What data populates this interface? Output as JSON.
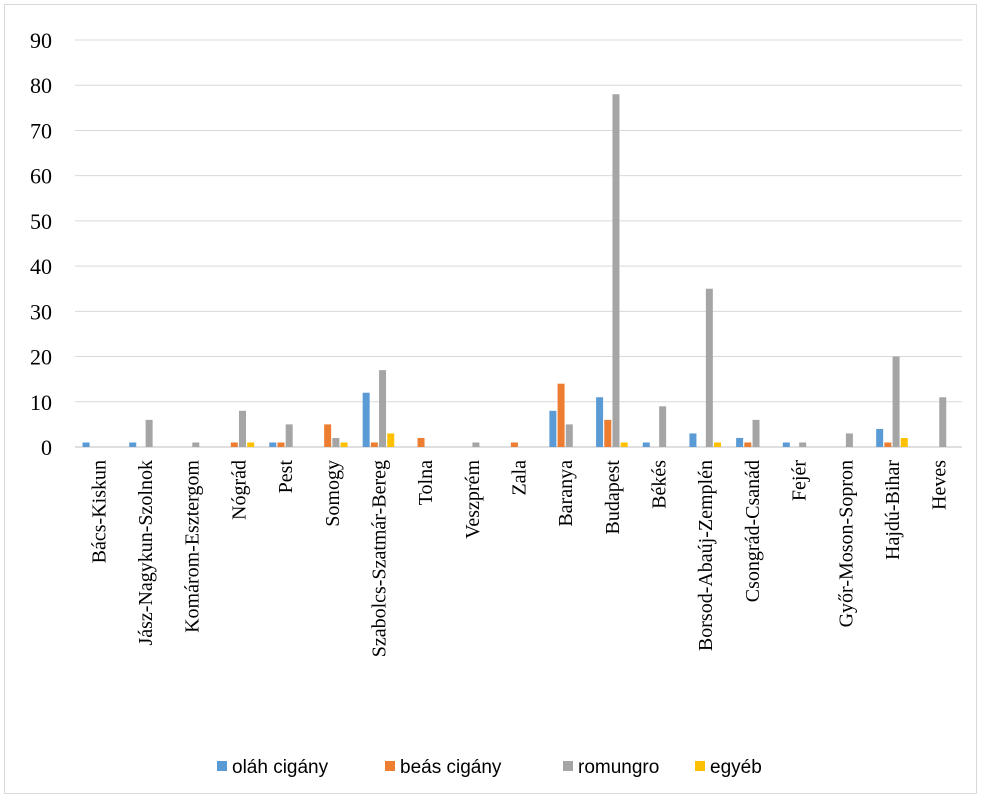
{
  "chart_data": {
    "type": "bar",
    "categories": [
      "Bács-Kiskun",
      "Jász-Nagykun-Szolnok",
      "Komárom-Esztergom",
      "Nógrád",
      "Pest",
      "Somogy",
      "Szabolcs-Szatmár-Bereg",
      "Tolna",
      "Veszprém",
      "Zala",
      "Baranya",
      "Budapest",
      "Békés",
      "Borsod-Abaúj-Zemplén",
      "Csongrád-Csanád",
      "Fejér",
      "Győr-Moson-Sopron",
      "Hajdú-Bihar",
      "Heves"
    ],
    "series": [
      {
        "name": "oláh cigány",
        "color": "#5b9bd5",
        "values": [
          1,
          1,
          0,
          0,
          1,
          0,
          12,
          0,
          0,
          0,
          8,
          11,
          1,
          3,
          2,
          1,
          0,
          4,
          0
        ]
      },
      {
        "name": "beás cigány",
        "color": "#ed7d31",
        "values": [
          0,
          0,
          0,
          1,
          1,
          5,
          1,
          2,
          0,
          1,
          14,
          6,
          0,
          0,
          1,
          0,
          0,
          1,
          0
        ]
      },
      {
        "name": "romungro",
        "color": "#a5a5a5",
        "values": [
          0,
          6,
          1,
          8,
          5,
          2,
          17,
          0,
          1,
          0,
          5,
          78,
          9,
          35,
          6,
          1,
          3,
          20,
          11
        ]
      },
      {
        "name": "egyéb",
        "color": "#ffc000",
        "values": [
          0,
          0,
          0,
          1,
          0,
          1,
          3,
          0,
          0,
          0,
          0,
          1,
          0,
          1,
          0,
          0,
          0,
          2,
          0
        ]
      }
    ],
    "ylim": [
      0,
      90
    ],
    "yticks": [
      0,
      10,
      20,
      30,
      40,
      50,
      60,
      70,
      80,
      90
    ],
    "grid": true,
    "legend_position": "bottom"
  }
}
